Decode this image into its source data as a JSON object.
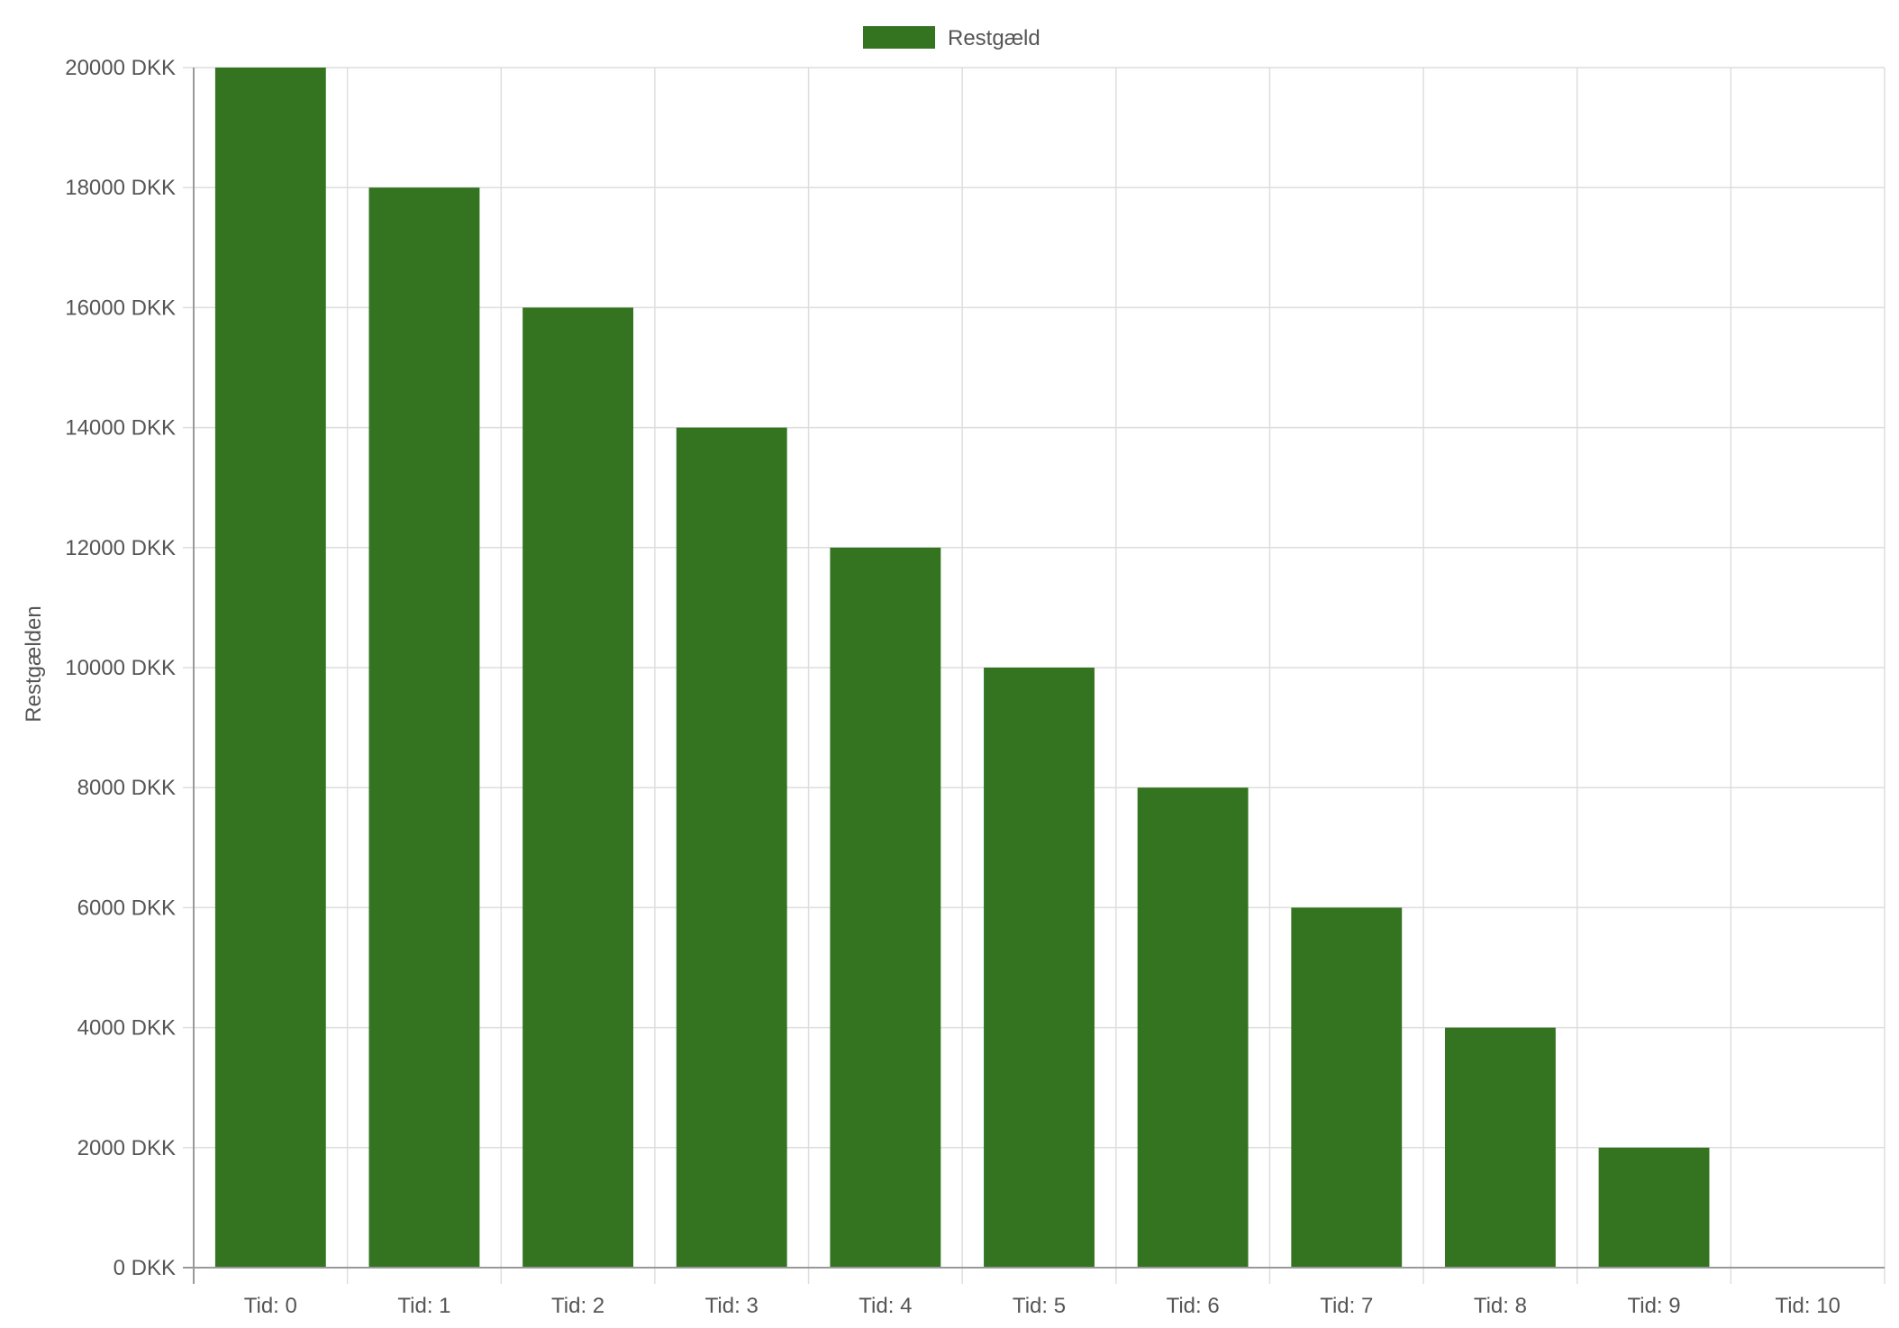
{
  "colors": {
    "bar": "#347320",
    "grid": "#dedede",
    "axis": "#999999",
    "text": "#555555"
  },
  "chart_data": {
    "type": "bar",
    "title": "",
    "legend": {
      "placement": "top-center",
      "entries": [
        "Restgæld"
      ]
    },
    "xlabel": "",
    "ylabel": "Restgælden",
    "categories": [
      "Tid: 0",
      "Tid: 1",
      "Tid: 2",
      "Tid: 3",
      "Tid: 4",
      "Tid: 5",
      "Tid: 6",
      "Tid: 7",
      "Tid: 8",
      "Tid: 9",
      "Tid: 10"
    ],
    "series": [
      {
        "name": "Restgæld",
        "values": [
          20000,
          18000,
          16000,
          14000,
          12000,
          10000,
          8000,
          6000,
          4000,
          2000,
          0
        ]
      }
    ],
    "ylim": [
      0,
      20000
    ],
    "y_ticks": [
      0,
      2000,
      4000,
      6000,
      8000,
      10000,
      12000,
      14000,
      16000,
      18000,
      20000
    ],
    "y_tick_labels": [
      "0 DKK",
      "2000 DKK",
      "4000 DKK",
      "6000 DKK",
      "8000 DKK",
      "10000 DKK",
      "12000 DKK",
      "14000 DKK",
      "16000 DKK",
      "18000 DKK",
      "20000 DKK"
    ],
    "grid": true
  }
}
